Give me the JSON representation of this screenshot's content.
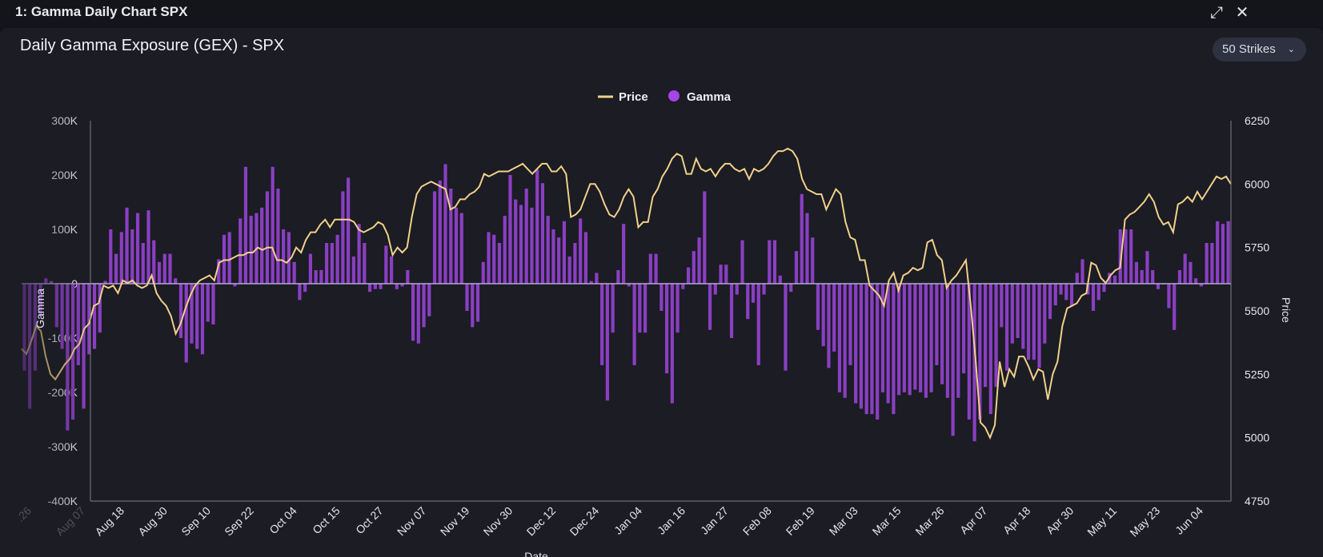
{
  "window": {
    "title": "1: Gamma Daily Chart SPX",
    "expand_icon": "expand-icon",
    "close_icon": "close-icon"
  },
  "header": {
    "title": "Daily Gamma Exposure (GEX) - SPX",
    "strikes_select": "50 Strikes"
  },
  "colors": {
    "gamma": "#8a3fc2",
    "price": "#f1d08a",
    "legend_gamma": "#a445e8",
    "zero_line": "#b7a5d9",
    "axis": "#7c7f8c"
  },
  "chart_data": {
    "type": "bar+line",
    "title": "Daily Gamma Exposure (GEX) - SPX",
    "xlabel": "Date",
    "ylabel_left": "Gamma",
    "ylabel_right": "Price",
    "legend": {
      "placement": "top-center",
      "entries": [
        "Price",
        "Gamma"
      ]
    },
    "y_left": {
      "min": -400000,
      "max": 300000,
      "ticks": [
        "300K",
        "200K",
        "100K",
        "0",
        "-100K",
        "-200K",
        "-300K",
        "-400K"
      ]
    },
    "y_right": {
      "min": 4750,
      "max": 6250,
      "ticks": [
        "6250",
        "6000",
        "5750",
        "5500",
        "5250",
        "5000",
        "4750"
      ]
    },
    "x_ticks": [
      "Aug 07",
      "Aug 18",
      "Aug 30",
      "Sep 10",
      "Sep 22",
      "Oct 04",
      "Oct 15",
      "Oct 27",
      "Nov 07",
      "Nov 19",
      "Nov 30",
      "Dec 12",
      "Dec 24",
      "Jan 04",
      "Jan 16",
      "Jan 27",
      "Feb 08",
      "Feb 19",
      "Mar 03",
      "Mar 15",
      "Mar 26",
      "Apr 07",
      "Apr 18",
      "Apr 30",
      "May 11",
      "May 23",
      "Jun 04"
    ],
    "x_ticks_faded": [
      ".26",
      "Aug 07"
    ],
    "series": [
      {
        "name": "Gamma",
        "type": "bar",
        "values": [
          -160000,
          -230000,
          -160000,
          -60000,
          10000,
          5000,
          -80000,
          -120000,
          -270000,
          -250000,
          -150000,
          -230000,
          -130000,
          -120000,
          -90000,
          5000,
          100000,
          55000,
          95000,
          140000,
          100000,
          130000,
          75000,
          135000,
          80000,
          40000,
          55000,
          55000,
          10000,
          -100000,
          -145000,
          -110000,
          -120000,
          -130000,
          -70000,
          -75000,
          45000,
          90000,
          95000,
          -5000,
          120000,
          215000,
          125000,
          130000,
          140000,
          170000,
          215000,
          175000,
          100000,
          95000,
          40000,
          -30000,
          -15000,
          55000,
          25000,
          25000,
          75000,
          75000,
          90000,
          170000,
          195000,
          50000,
          110000,
          75000,
          -15000,
          -10000,
          -10000,
          70000,
          50000,
          -10000,
          -5000,
          25000,
          -105000,
          -110000,
          -80000,
          -60000,
          170000,
          190000,
          220000,
          175000,
          140000,
          130000,
          -50000,
          -80000,
          -70000,
          40000,
          95000,
          90000,
          75000,
          125000,
          200000,
          155000,
          145000,
          175000,
          140000,
          210000,
          185000,
          125000,
          100000,
          85000,
          115000,
          50000,
          75000,
          120000,
          95000,
          5000,
          20000,
          -150000,
          -215000,
          -90000,
          25000,
          110000,
          -5000,
          -150000,
          -90000,
          -90000,
          55000,
          55000,
          -50000,
          -165000,
          -220000,
          -90000,
          -10000,
          30000,
          60000,
          85000,
          170000,
          -85000,
          -20000,
          35000,
          35000,
          -100000,
          -20000,
          80000,
          -65000,
          -35000,
          -150000,
          -20000,
          80000,
          80000,
          15000,
          -160000,
          -15000,
          60000,
          165000,
          130000,
          85000,
          -85000,
          -115000,
          -155000,
          -125000,
          -200000,
          -210000,
          -150000,
          -220000,
          -230000,
          -240000,
          -240000,
          -250000,
          -200000,
          -220000,
          -240000,
          -205000,
          -200000,
          -205000,
          -195000,
          -200000,
          -210000,
          -200000,
          -150000,
          -185000,
          -210000,
          -280000,
          -210000,
          -165000,
          -250000,
          -290000,
          -250000,
          -190000,
          -240000,
          -190000,
          -80000,
          -160000,
          -110000,
          -100000,
          -120000,
          -140000,
          -140000,
          -155000,
          -110000,
          -65000,
          -40000,
          -20000,
          -30000,
          -40000,
          20000,
          45000,
          -20000,
          -50000,
          -30000,
          -15000,
          20000,
          15000,
          100000,
          100000,
          100000,
          40000,
          25000,
          60000,
          25000,
          -10000,
          0,
          -45000,
          -85000,
          25000,
          55000,
          40000,
          10000,
          -5000,
          75000,
          75000,
          115000,
          110000,
          115000
        ]
      },
      {
        "name": "Price",
        "type": "line",
        "values": [
          5350,
          5330,
          5380,
          5440,
          5420,
          5320,
          5250,
          5230,
          5260,
          5290,
          5310,
          5350,
          5370,
          5430,
          5450,
          5520,
          5530,
          5600,
          5590,
          5600,
          5570,
          5620,
          5610,
          5620,
          5600,
          5590,
          5600,
          5640,
          5570,
          5540,
          5520,
          5480,
          5410,
          5450,
          5510,
          5560,
          5600,
          5620,
          5630,
          5640,
          5620,
          5690,
          5700,
          5700,
          5710,
          5720,
          5720,
          5730,
          5730,
          5750,
          5740,
          5750,
          5750,
          5700,
          5700,
          5690,
          5710,
          5750,
          5730,
          5780,
          5810,
          5810,
          5840,
          5860,
          5830,
          5860,
          5860,
          5860,
          5860,
          5850,
          5820,
          5810,
          5820,
          5830,
          5850,
          5840,
          5800,
          5720,
          5750,
          5730,
          5750,
          5870,
          5960,
          5990,
          6000,
          6010,
          6000,
          5990,
          5980,
          5900,
          5910,
          5940,
          5940,
          5960,
          5970,
          5990,
          6040,
          6030,
          6040,
          6050,
          6050,
          6050,
          6060,
          6070,
          6080,
          6060,
          6040,
          6060,
          6080,
          6080,
          6050,
          6050,
          6070,
          6040,
          5870,
          5880,
          5900,
          5950,
          6000,
          6000,
          5970,
          5920,
          5880,
          5870,
          5900,
          5950,
          5980,
          5950,
          5830,
          5850,
          5850,
          5950,
          5980,
          6030,
          6060,
          6100,
          6120,
          6110,
          6040,
          6040,
          6100,
          6060,
          6050,
          6060,
          6030,
          6060,
          6080,
          6080,
          6060,
          6050,
          6060,
          6020,
          6060,
          6050,
          6060,
          6080,
          6110,
          6130,
          6130,
          6140,
          6130,
          6100,
          6020,
          5980,
          5970,
          5960,
          5960,
          5900,
          5940,
          5980,
          5960,
          5850,
          5790,
          5780,
          5700,
          5700,
          5600,
          5580,
          5560,
          5520,
          5620,
          5650,
          5580,
          5640,
          5650,
          5670,
          5660,
          5670,
          5770,
          5780,
          5720,
          5700,
          5590,
          5620,
          5640,
          5670,
          5700,
          5520,
          5310,
          5060,
          5040,
          5000,
          5050,
          5300,
          5200,
          5270,
          5240,
          5320,
          5320,
          5280,
          5230,
          5270,
          5260,
          5150,
          5250,
          5300,
          5440,
          5510,
          5520,
          5530,
          5560,
          5570,
          5690,
          5680,
          5630,
          5610,
          5640,
          5660,
          5670,
          5860,
          5880,
          5890,
          5910,
          5930,
          5960,
          5930,
          5870,
          5840,
          5850,
          5810,
          5920,
          5930,
          5950,
          5930,
          5970,
          5940,
          5970,
          6000,
          6030,
          6020,
          6030,
          6000
        ]
      }
    ]
  }
}
